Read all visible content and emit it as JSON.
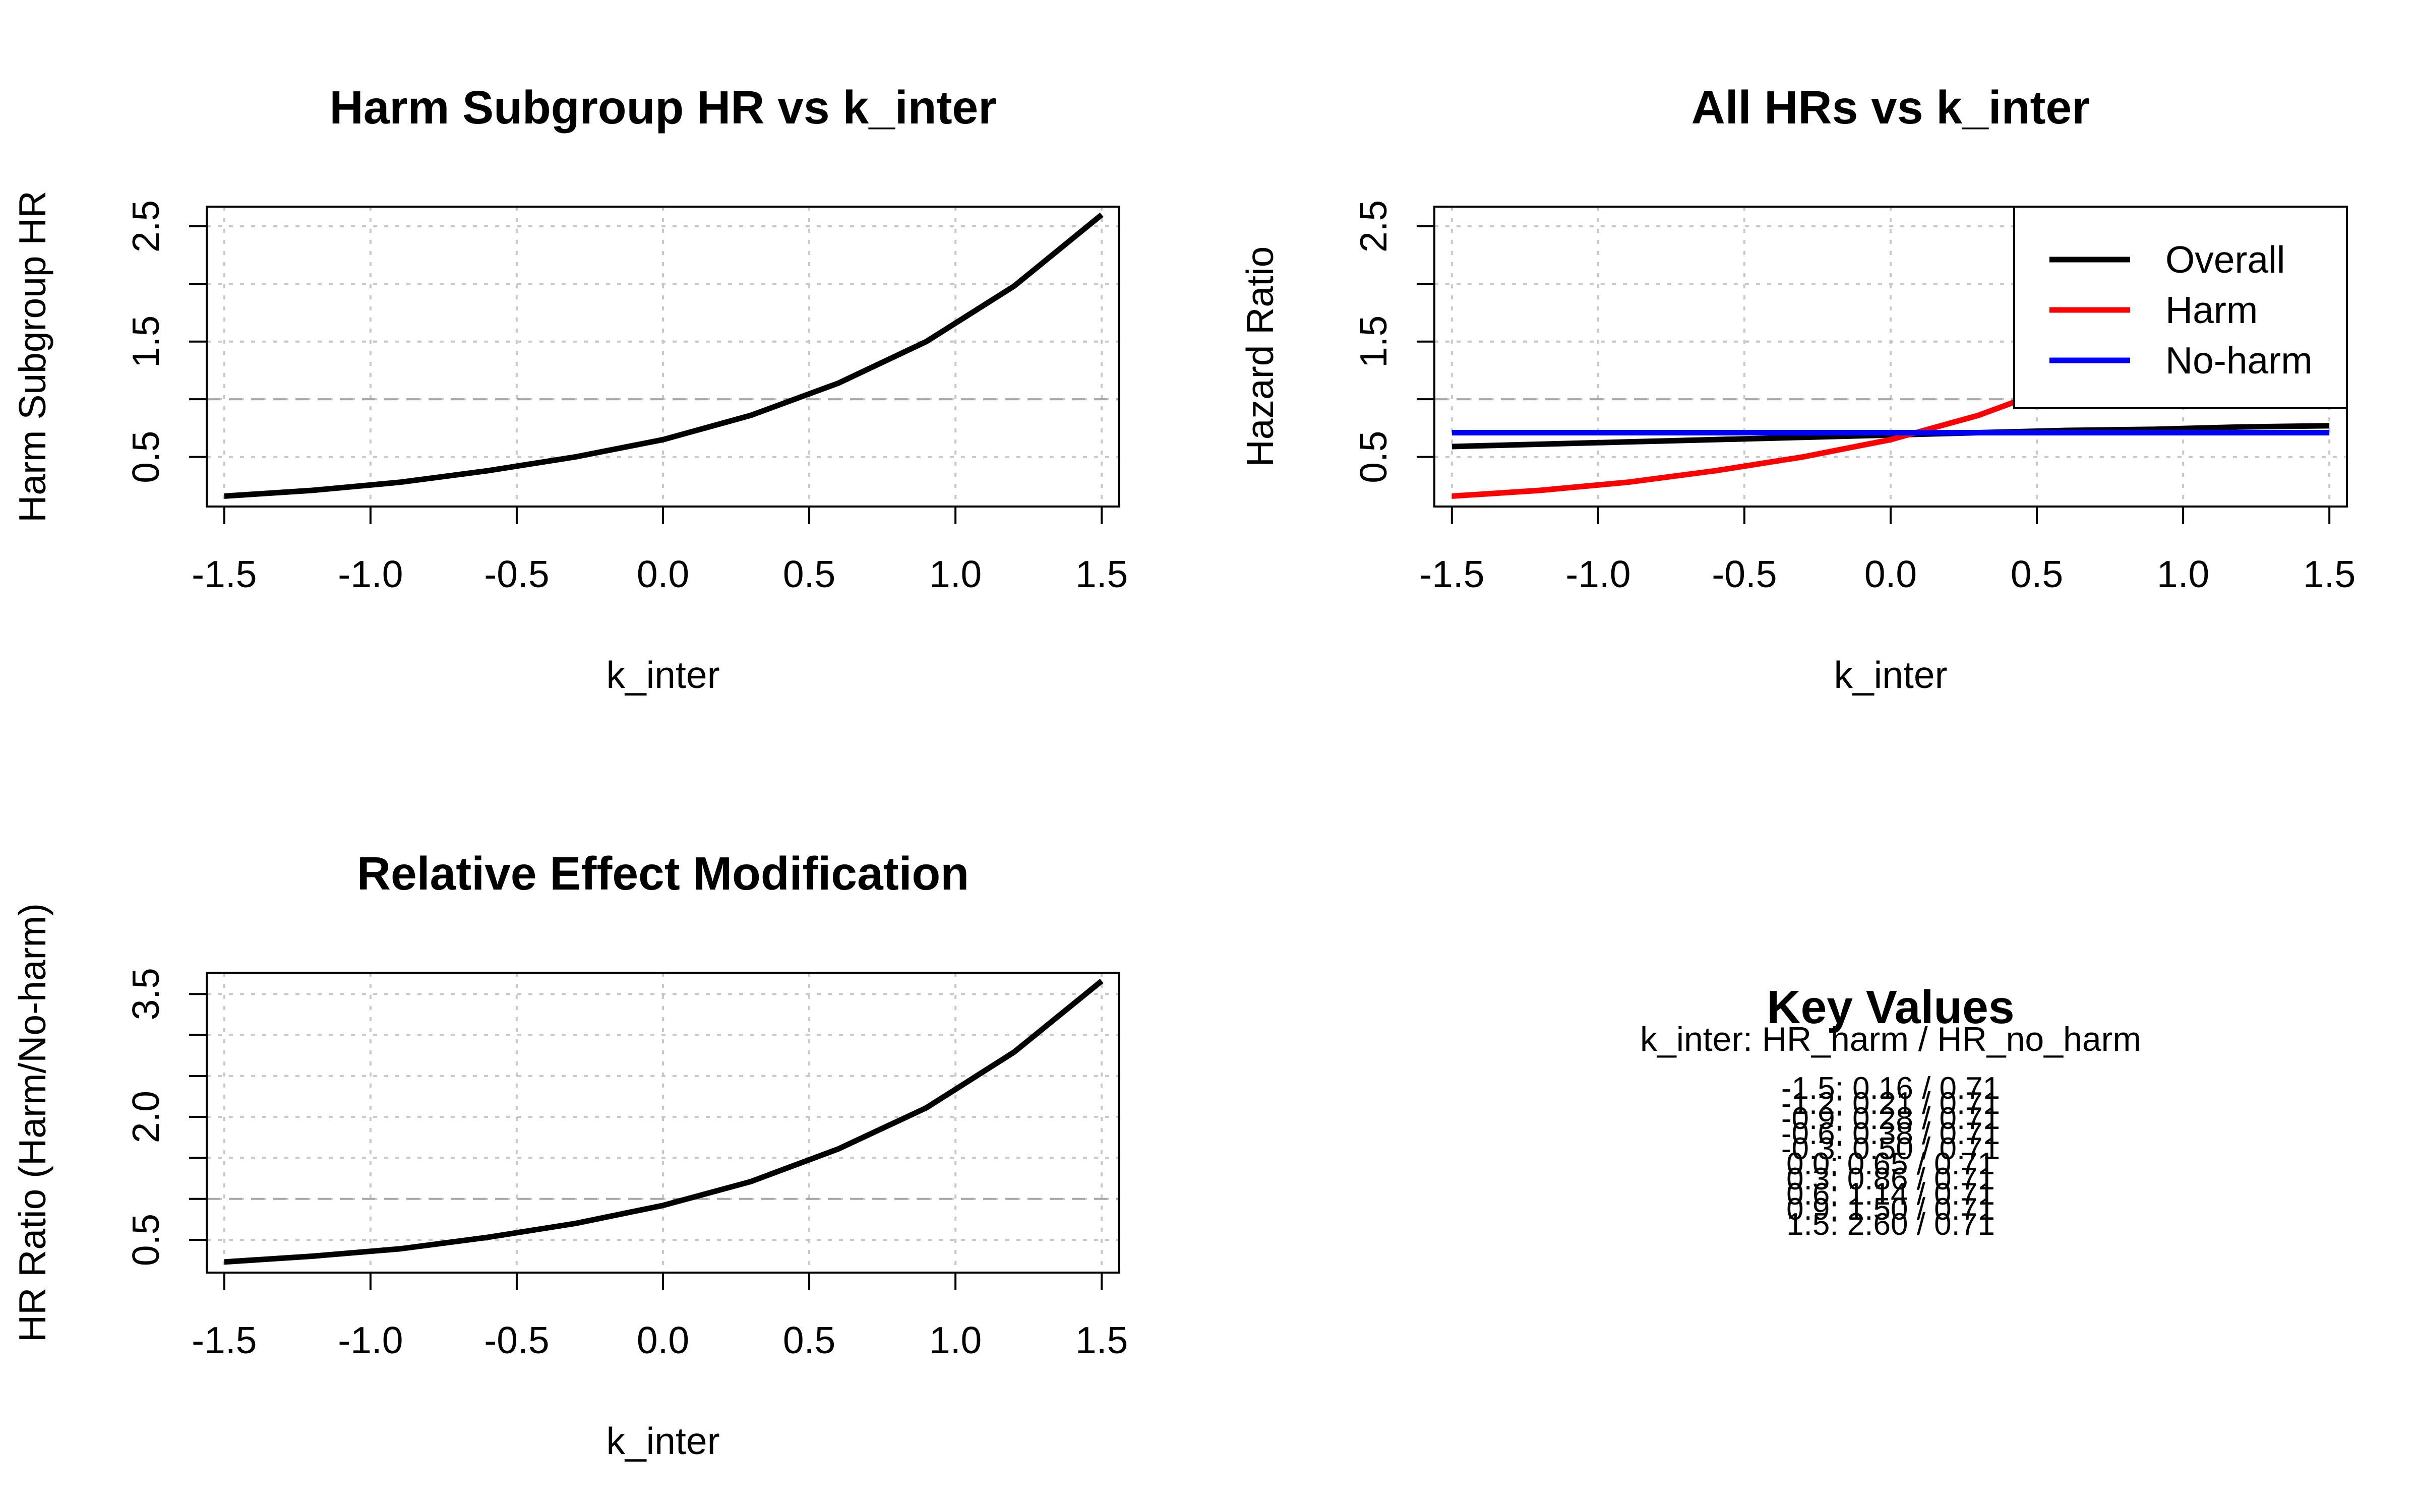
{
  "chart_data": [
    {
      "type": "line",
      "title": "Harm Subgroup HR vs k_inter",
      "xlabel": "k_inter",
      "ylabel": "Harm Subgroup HR",
      "xlim": [
        -1.56,
        1.56
      ],
      "ylim": [
        0.07,
        2.67
      ],
      "x_ticks": [
        -1.5,
        -1.0,
        -0.5,
        0.0,
        0.5,
        1.0,
        1.5
      ],
      "x_tick_labels": [
        "-1.5",
        "-1.0",
        "-0.5",
        "0.0",
        "0.5",
        "1.0",
        "1.5"
      ],
      "y_ticks": [
        0.5,
        1.5,
        2.5
      ],
      "y_tick_labels": [
        "0.5",
        "1.5",
        "2.5"
      ],
      "y_minor_ticks": [
        1.0,
        2.0
      ],
      "grid": true,
      "reference_line": 1.0,
      "x": [
        -1.5,
        -1.2,
        -0.9,
        -0.6,
        -0.3,
        0.0,
        0.3,
        0.6,
        0.9,
        1.2,
        1.5
      ],
      "series": [
        {
          "color": "#000000",
          "values": [
            0.16,
            0.21,
            0.28,
            0.38,
            0.5,
            0.65,
            0.86,
            1.14,
            1.5,
            1.98,
            2.6
          ]
        }
      ]
    },
    {
      "type": "line",
      "title": "All HRs vs k_inter",
      "xlabel": "k_inter",
      "ylabel": "Hazard Ratio",
      "xlim": [
        -1.56,
        1.56
      ],
      "ylim": [
        0.07,
        2.67
      ],
      "x_ticks": [
        -1.5,
        -1.0,
        -0.5,
        0.0,
        0.5,
        1.0,
        1.5
      ],
      "x_tick_labels": [
        "-1.5",
        "-1.0",
        "-0.5",
        "0.0",
        "0.5",
        "1.0",
        "1.5"
      ],
      "y_ticks": [
        0.5,
        1.5,
        2.5
      ],
      "y_tick_labels": [
        "0.5",
        "1.5",
        "2.5"
      ],
      "y_minor_ticks": [
        1.0,
        2.0
      ],
      "grid": true,
      "reference_line": 1.0,
      "legend_position": "top-right",
      "x": [
        -1.5,
        -1.2,
        -0.9,
        -0.6,
        -0.3,
        0.0,
        0.3,
        0.6,
        0.9,
        1.2,
        1.5
      ],
      "series": [
        {
          "name": "Overall",
          "color": "#000000",
          "values": [
            0.59,
            0.61,
            0.63,
            0.65,
            0.67,
            0.69,
            0.71,
            0.73,
            0.74,
            0.76,
            0.77
          ]
        },
        {
          "name": "Harm",
          "color": "#ff0000",
          "values": [
            0.16,
            0.21,
            0.28,
            0.38,
            0.5,
            0.65,
            0.86,
            1.14,
            1.5,
            1.98,
            2.6
          ]
        },
        {
          "name": "No-harm",
          "color": "#0000ff",
          "values": [
            0.71,
            0.71,
            0.71,
            0.71,
            0.71,
            0.71,
            0.71,
            0.71,
            0.71,
            0.71,
            0.71
          ]
        }
      ]
    },
    {
      "type": "line",
      "title": "Relative Effect Modification",
      "xlabel": "k_inter",
      "ylabel": "HR Ratio (Harm/No-harm)",
      "xlim": [
        -1.56,
        1.56
      ],
      "ylim": [
        0.1,
        3.76
      ],
      "x_ticks": [
        -1.5,
        -1.0,
        -0.5,
        0.0,
        0.5,
        1.0,
        1.5
      ],
      "x_tick_labels": [
        "-1.5",
        "-1.0",
        "-0.5",
        "0.0",
        "0.5",
        "1.0",
        "1.5"
      ],
      "y_ticks": [
        0.5,
        2.0,
        3.5
      ],
      "y_tick_labels": [
        "0.5",
        "2.0",
        "3.5"
      ],
      "y_minor_ticks": [
        1.0,
        1.5,
        2.5,
        3.0
      ],
      "grid": true,
      "reference_line": 1.0,
      "x": [
        -1.5,
        -1.2,
        -0.9,
        -0.6,
        -0.3,
        0.0,
        0.3,
        0.6,
        0.9,
        1.2,
        1.5
      ],
      "series": [
        {
          "color": "#000000",
          "values": [
            0.23,
            0.3,
            0.39,
            0.53,
            0.7,
            0.92,
            1.21,
            1.61,
            2.11,
            2.79,
            3.66
          ]
        }
      ]
    }
  ],
  "key_values": {
    "title": "Key Values",
    "header": "k_inter: HR_harm / HR_no_harm",
    "lines": [
      "-1.5: 0.16 / 0.71",
      "-1.2: 0.21 / 0.71",
      "-0.9: 0.28 / 0.71",
      "-0.6: 0.38 / 0.71",
      "-0.3: 0.50 / 0.71",
      "0.0: 0.65 / 0.71",
      "0.3: 0.86 / 0.71",
      "0.6: 1.14 / 0.71",
      "0.9: 1.50 / 0.71",
      "1.5: 2.60 / 0.71"
    ]
  }
}
